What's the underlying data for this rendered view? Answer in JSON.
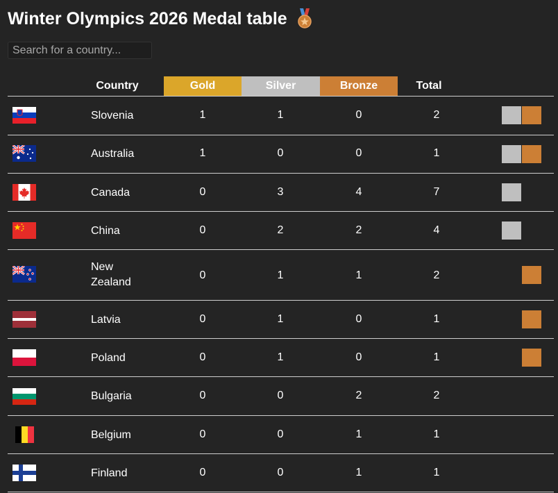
{
  "title": "Winter Olympics 2026 Medal table",
  "search": {
    "placeholder": "Search for a country..."
  },
  "colors": {
    "gold": "#dba62a",
    "silver": "#bfbfbf",
    "bronze": "#cc7f35",
    "background": "#242424"
  },
  "headers": {
    "country": "Country",
    "gold": "Gold",
    "silver": "Silver",
    "bronze": "Bronze",
    "total": "Total"
  },
  "rows": [
    {
      "flag": "slovenia-flag-icon",
      "country": "Slovenia",
      "gold": "1",
      "silver": "1",
      "bronze": "0",
      "total": "2",
      "chips": [
        "silver",
        "bronze"
      ]
    },
    {
      "flag": "australia-flag-icon",
      "country": "Australia",
      "gold": "1",
      "silver": "0",
      "bronze": "0",
      "total": "1",
      "chips": [
        "silver",
        "bronze"
      ]
    },
    {
      "flag": "canada-flag-icon",
      "country": "Canada",
      "gold": "0",
      "silver": "3",
      "bronze": "4",
      "total": "7",
      "chips": [
        "silver"
      ]
    },
    {
      "flag": "china-flag-icon",
      "country": "China",
      "gold": "0",
      "silver": "2",
      "bronze": "2",
      "total": "4",
      "chips": [
        "silver"
      ]
    },
    {
      "flag": "new-zealand-flag-icon",
      "country": "New Zealand",
      "gold": "0",
      "silver": "1",
      "bronze": "1",
      "total": "2",
      "chips": [
        "bronze"
      ]
    },
    {
      "flag": "latvia-flag-icon",
      "country": "Latvia",
      "gold": "0",
      "silver": "1",
      "bronze": "0",
      "total": "1",
      "chips": [
        "bronze"
      ]
    },
    {
      "flag": "poland-flag-icon",
      "country": "Poland",
      "gold": "0",
      "silver": "1",
      "bronze": "0",
      "total": "1",
      "chips": [
        "bronze"
      ]
    },
    {
      "flag": "bulgaria-flag-icon",
      "country": "Bulgaria",
      "gold": "0",
      "silver": "0",
      "bronze": "2",
      "total": "2",
      "chips": []
    },
    {
      "flag": "belgium-flag-icon",
      "country": "Belgium",
      "gold": "0",
      "silver": "0",
      "bronze": "1",
      "total": "1",
      "chips": []
    },
    {
      "flag": "finland-flag-icon",
      "country": "Finland",
      "gold": "0",
      "silver": "0",
      "bronze": "1",
      "total": "1",
      "chips": []
    }
  ]
}
